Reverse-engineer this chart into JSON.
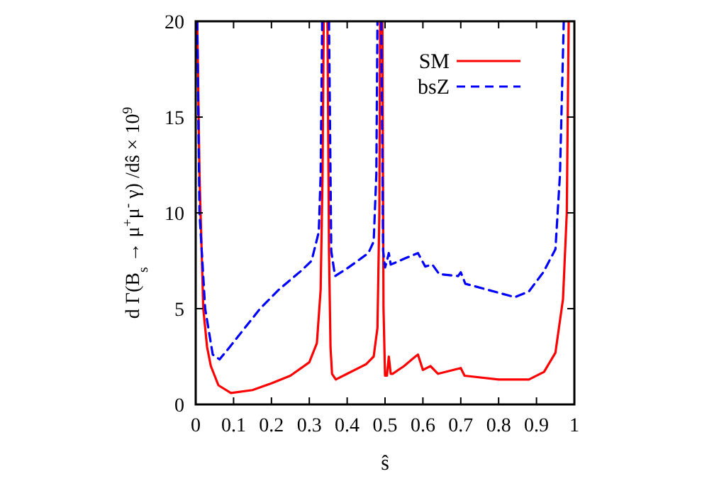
{
  "chart_data": {
    "type": "line",
    "xlabel": "ŝ",
    "ylabel": "d Γ(B$_{s}$ → μ$^{+}$μ$^{-}$ γ) /dŝ × 10$^{9}$",
    "xlim": [
      0,
      1
    ],
    "ylim": [
      0,
      20
    ],
    "xticks": [
      0,
      0.1,
      0.2,
      0.3,
      0.4,
      0.5,
      0.6,
      0.7,
      0.8,
      0.9,
      1
    ],
    "yticks": [
      0,
      5,
      10,
      15,
      20
    ],
    "grid": false,
    "legend": "top right",
    "series": [
      {
        "name": "SM",
        "color": "#ff0000",
        "line_style": "solid",
        "x": [
          0.004,
          0.01,
          0.02,
          0.03,
          0.04,
          0.06,
          0.093,
          0.15,
          0.2,
          0.25,
          0.3,
          0.32,
          0.33,
          0.335,
          0.338,
          0.343,
          0.348,
          0.352,
          0.356,
          0.36,
          0.37,
          0.4,
          0.45,
          0.47,
          0.48,
          0.485,
          0.487,
          0.49,
          0.493,
          0.496,
          0.5,
          0.505,
          0.51,
          0.515,
          0.52,
          0.55,
          0.58,
          0.587,
          0.6,
          0.62,
          0.64,
          0.7,
          0.71,
          0.8,
          0.88,
          0.92,
          0.95,
          0.97,
          0.98,
          0.985
        ],
        "values": [
          20,
          12,
          5,
          3,
          2,
          1,
          0.6,
          0.75,
          1.1,
          1.5,
          2.2,
          3.2,
          6,
          12,
          20,
          null,
          20,
          8,
          3,
          1.6,
          1.3,
          1.6,
          2.1,
          2.5,
          4,
          10,
          20,
          null,
          20,
          5,
          1.5,
          1.5,
          2.5,
          1.6,
          1.6,
          2,
          2.5,
          2.6,
          1.8,
          2,
          1.6,
          1.9,
          1.5,
          1.3,
          1.3,
          1.7,
          2.7,
          5.5,
          10,
          20
        ]
      },
      {
        "name": "bsZ",
        "color": "#0000ff",
        "line_style": "dashed",
        "x": [
          0.004,
          0.01,
          0.025,
          0.045,
          0.063,
          0.09,
          0.13,
          0.17,
          0.22,
          0.28,
          0.306,
          0.325,
          0.33,
          0.334,
          0.343,
          0.352,
          0.358,
          0.368,
          0.4,
          0.456,
          0.47,
          0.477,
          0.48,
          0.485,
          0.49,
          0.495,
          0.5,
          0.505,
          0.51,
          0.515,
          0.55,
          0.587,
          0.606,
          0.625,
          0.643,
          0.693,
          0.7,
          0.712,
          0.843,
          0.88,
          0.918,
          0.95,
          0.962,
          0.972
        ],
        "values": [
          20,
          10,
          5,
          2.6,
          2.35,
          3,
          4,
          5,
          6,
          7,
          7.5,
          9,
          12,
          20,
          null,
          20,
          8,
          6.7,
          7.1,
          7.9,
          8.5,
          12,
          20,
          null,
          20,
          8,
          7.15,
          7.5,
          7.9,
          7.3,
          7.6,
          7.9,
          7.2,
          7.3,
          6.8,
          6.7,
          6.9,
          6.3,
          5.6,
          5.9,
          6.9,
          8.1,
          12,
          20
        ]
      }
    ]
  }
}
